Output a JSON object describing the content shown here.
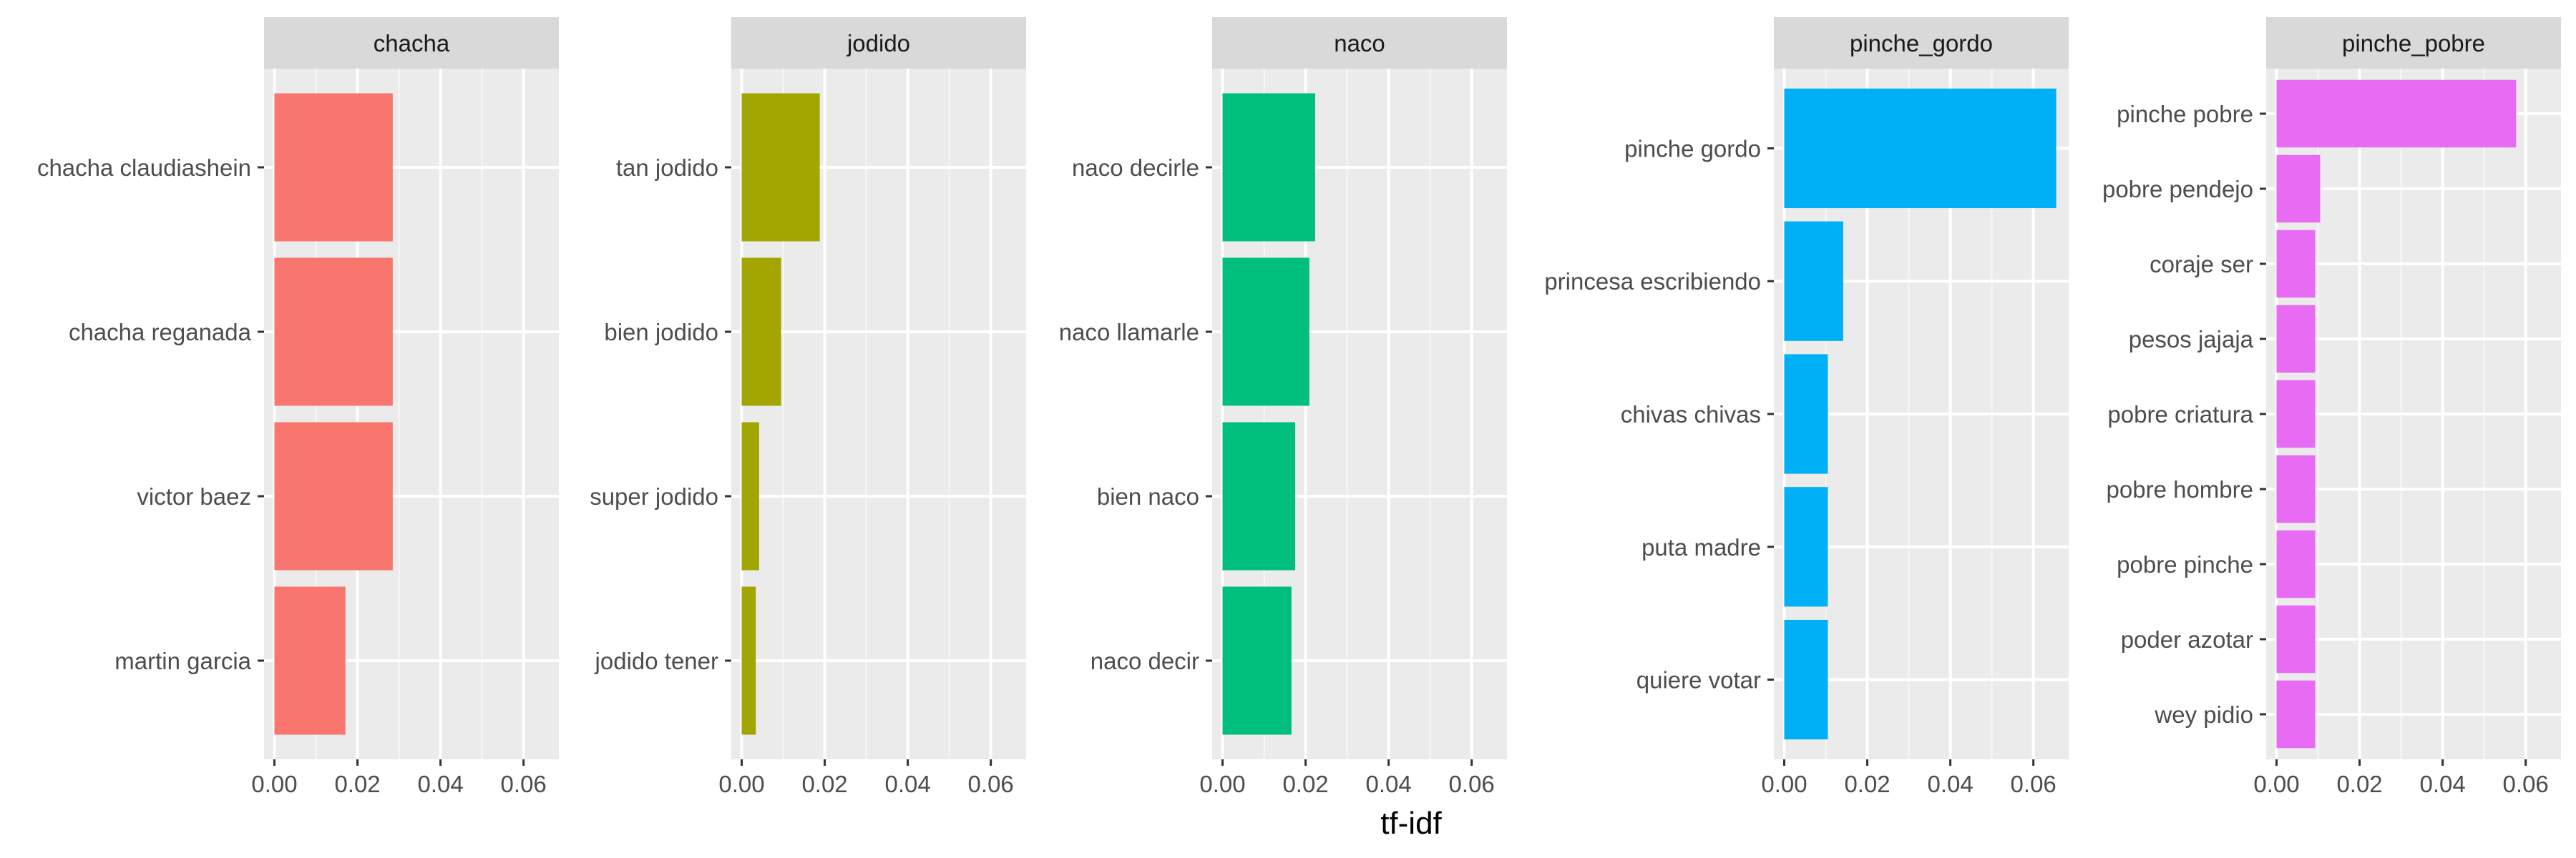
{
  "chart_data": {
    "type": "bar",
    "orientation": "horizontal",
    "xlabel": "tf-idf",
    "ylabel": "",
    "xlim": [
      -0.0025,
      0.0685
    ],
    "xticks": [
      0.0,
      0.02,
      0.04,
      0.06
    ],
    "xtick_labels": [
      "0.00",
      "0.02",
      "0.04",
      "0.06"
    ],
    "grid": true,
    "legend": "none",
    "panels": [
      {
        "facet": "chacha",
        "color": "#F8766D",
        "categories": [
          "chacha claudiashein",
          "chacha reganada",
          "victor baez",
          "martin garcia"
        ],
        "values": [
          0.0285,
          0.0285,
          0.0285,
          0.0171
        ]
      },
      {
        "facet": "jodido",
        "color": "#A3A500",
        "categories": [
          "tan jodido",
          "bien jodido",
          "super jodido",
          "jodido tener"
        ],
        "values": [
          0.0188,
          0.0095,
          0.0042,
          0.0034
        ]
      },
      {
        "facet": "naco",
        "color": "#00BF7D",
        "categories": [
          "naco decirle",
          "naco llamarle",
          "bien naco",
          "naco decir"
        ],
        "values": [
          0.0223,
          0.0209,
          0.0175,
          0.0166
        ]
      },
      {
        "facet": "pinche_gordo",
        "color": "#00B0F6",
        "categories": [
          "pinche gordo",
          "princesa escribiendo",
          "chivas chivas",
          "puta madre",
          "quiere votar"
        ],
        "values": [
          0.0655,
          0.0142,
          0.0105,
          0.0105,
          0.0105
        ]
      },
      {
        "facet": "pinche_pobre",
        "color": "#E76BF3",
        "categories": [
          "pinche pobre",
          "pobre pendejo",
          "coraje ser",
          "pesos jajaja",
          "pobre criatura",
          "pobre hombre",
          "pobre pinche",
          "poder azotar",
          "wey pidio"
        ],
        "values": [
          0.0577,
          0.0105,
          0.0093,
          0.0093,
          0.0093,
          0.0093,
          0.0093,
          0.0093,
          0.0093
        ]
      }
    ]
  }
}
